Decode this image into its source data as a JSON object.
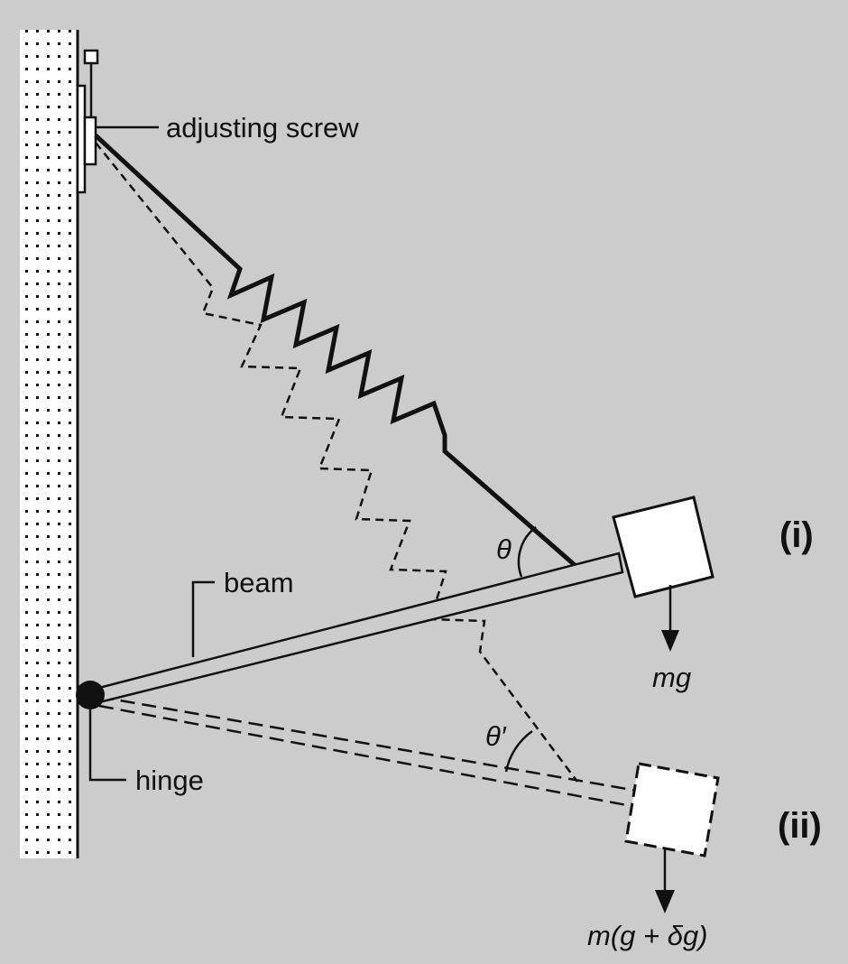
{
  "colors": {
    "background": "#cccccc",
    "ink": "#111111",
    "wall_fill": "#ffffff",
    "mass_fill": "#ffffff"
  },
  "labels": {
    "adjusting_screw": "adjusting screw",
    "beam": "beam",
    "hinge": "hinge",
    "state_i": "(i)",
    "state_ii": "(ii)",
    "theta": "θ",
    "theta_prime": "θ′",
    "force_i": "mg",
    "force_ii": "m(g + δg)"
  }
}
